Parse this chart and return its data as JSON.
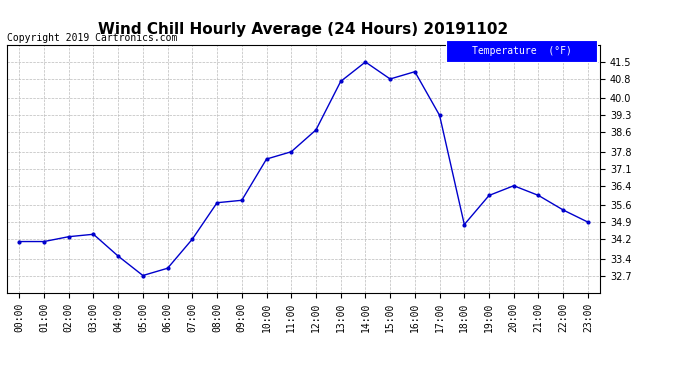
{
  "title": "Wind Chill Hourly Average (24 Hours) 20191102",
  "copyright_text": "Copyright 2019 Cartronics.com",
  "legend_label": "Temperature  (°F)",
  "hours": [
    "00:00",
    "01:00",
    "02:00",
    "03:00",
    "04:00",
    "05:00",
    "06:00",
    "07:00",
    "08:00",
    "09:00",
    "10:00",
    "11:00",
    "12:00",
    "13:00",
    "14:00",
    "15:00",
    "16:00",
    "17:00",
    "18:00",
    "19:00",
    "20:00",
    "21:00",
    "22:00",
    "23:00"
  ],
  "values": [
    34.1,
    34.1,
    34.3,
    34.4,
    33.5,
    32.7,
    33.0,
    34.2,
    35.7,
    35.8,
    37.5,
    37.8,
    38.7,
    40.7,
    41.5,
    40.8,
    41.1,
    39.3,
    34.8,
    36.0,
    36.4,
    36.0,
    35.4,
    34.9
  ],
  "line_color": "#0000cc",
  "marker": ".",
  "marker_size": 4,
  "ylim_min": 32.0,
  "ylim_max": 42.2,
  "yticks": [
    32.7,
    33.4,
    34.2,
    34.9,
    35.6,
    36.4,
    37.1,
    37.8,
    38.6,
    39.3,
    40.0,
    40.8,
    41.5
  ],
  "grid_color": "#bbbbbb",
  "background_color": "#ffffff",
  "legend_bg": "#0000ff",
  "legend_fg": "#ffffff",
  "title_fontsize": 11,
  "copyright_fontsize": 7,
  "tick_fontsize": 7
}
